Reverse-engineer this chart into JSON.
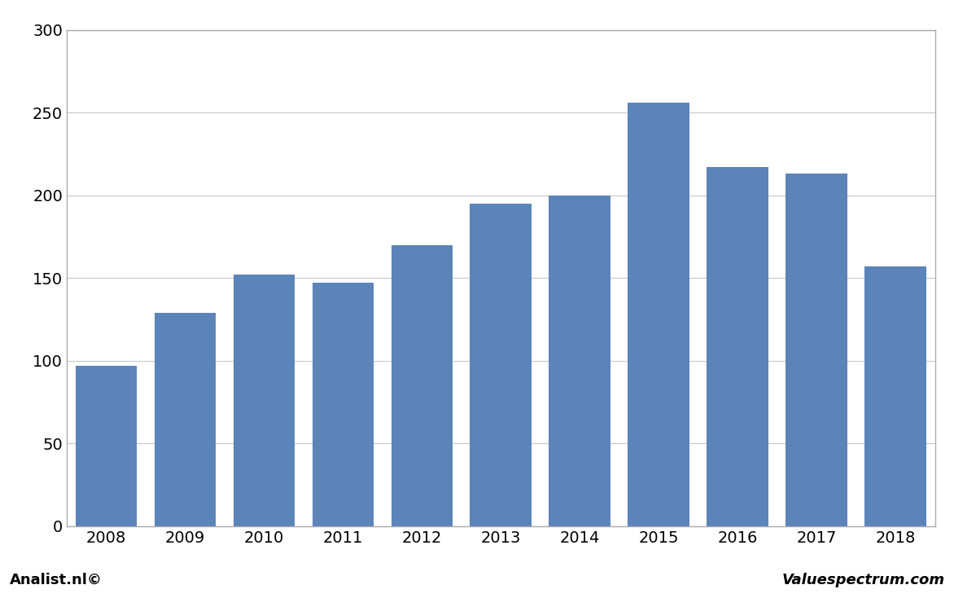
{
  "categories": [
    "2008",
    "2009",
    "2010",
    "2011",
    "2012",
    "2013",
    "2014",
    "2015",
    "2016",
    "2017",
    "2018"
  ],
  "values": [
    97,
    129,
    152,
    147,
    170,
    195,
    200,
    256,
    217,
    213,
    157
  ],
  "bar_color": "#5b84b8",
  "ylim": [
    0,
    300
  ],
  "yticks": [
    0,
    50,
    100,
    150,
    200,
    250,
    300
  ],
  "background_color": "#ffffff",
  "plot_bg_color": "#ffffff",
  "grid_color": "#c8c8c8",
  "footer_left": "Analist.nl©",
  "footer_right": "Valuespectrum.com",
  "footer_fontsize": 13,
  "tick_fontsize": 14,
  "border_color": "#aaaaaa",
  "footer_bg_color": "#d8d8d8"
}
